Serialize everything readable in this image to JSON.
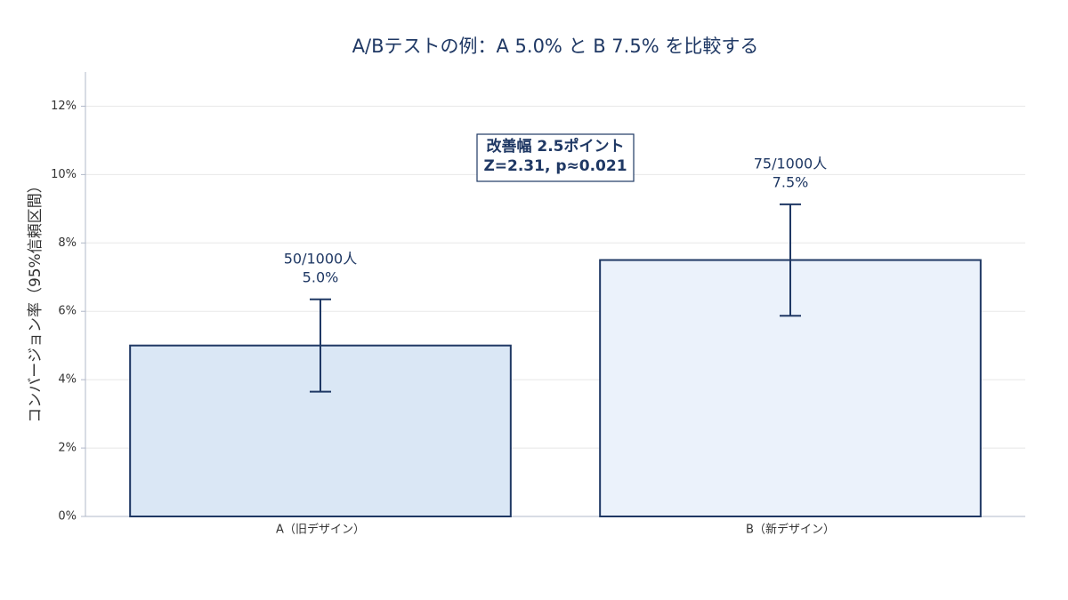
{
  "chart_data": {
    "type": "bar",
    "title": "A/Bテストの例：A 5.0% と B 7.5% を比較する",
    "y_label": "コンバージョン率（95%信頼区間）",
    "categories": [
      "A（旧デザイン）",
      "B（新デザイン）"
    ],
    "values": [
      5.0,
      7.5
    ],
    "value_labels": [
      "5.0%",
      "7.5%"
    ],
    "sample_labels": [
      "50/1000人",
      "75/1000人"
    ],
    "errors": [
      1.35,
      1.63
    ],
    "colors": [
      "#dae7f5",
      "#ebf2fb"
    ],
    "edge_color": "#1f3864",
    "annotation": [
      "改善幅 2.5ポイント",
      "Z=2.31, p≈0.021"
    ],
    "ylim": [
      0,
      13
    ],
    "yticks": [
      {
        "value": 0,
        "label": "0%"
      },
      {
        "value": 2,
        "label": "2%"
      },
      {
        "value": 4,
        "label": "4%"
      },
      {
        "value": 6,
        "label": "6%"
      },
      {
        "value": 8,
        "label": "8%"
      },
      {
        "value": 10,
        "label": "10%"
      },
      {
        "value": 12,
        "label": "12%"
      }
    ],
    "grid": true
  }
}
